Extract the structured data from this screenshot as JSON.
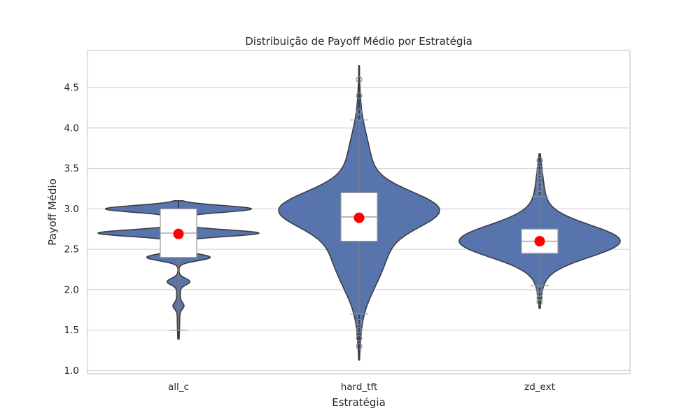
{
  "chart_data": {
    "type": "violin",
    "title": "Distribuição de Payoff Médio por Estratégia",
    "xlabel": "Estratégia",
    "ylabel": "Payoff Médio",
    "ylim": [
      0.96,
      4.96
    ],
    "yticks": [
      "1.0",
      "1.5",
      "2.0",
      "2.5",
      "3.0",
      "3.5",
      "4.0",
      "4.5"
    ],
    "grid": "horizontal",
    "colors": {
      "violin_fill": "#5874ac",
      "violin_edge": "#3c3c46",
      "box_fill": "#ffffff",
      "box_edge": "#9a9a9a",
      "mean_marker": "#ff0000",
      "grid": "#cccccc",
      "frame": "#cccccc"
    },
    "categories": [
      "all_c",
      "hard_tft",
      "zd_ext"
    ],
    "series": [
      {
        "category": "all_c",
        "violin_range": [
          1.39,
          3.1
        ],
        "box": {
          "q1": 2.4,
          "median": 2.7,
          "q3": 3.0,
          "whisker_low": 1.5,
          "whisker_high": 3.0
        },
        "mean": 2.69,
        "outliers": []
      },
      {
        "category": "hard_tft",
        "violin_range": [
          1.13,
          4.77
        ],
        "box": {
          "q1": 2.6,
          "median": 2.9,
          "q3": 3.2,
          "whisker_low": 1.7,
          "whisker_high": 4.1
        },
        "mean": 2.89,
        "outliers": [
          1.3,
          1.4,
          1.5,
          1.5,
          1.6,
          4.2,
          4.2,
          4.4,
          4.6
        ]
      },
      {
        "category": "zd_ext",
        "violin_range": [
          1.77,
          3.68
        ],
        "box": {
          "q1": 2.45,
          "median": 2.6,
          "q3": 2.75,
          "whisker_low": 2.05,
          "whisker_high": 3.15
        },
        "mean": 2.6,
        "outliers": [
          1.85,
          1.9,
          1.95,
          2.0,
          3.2,
          3.25,
          3.3,
          3.35,
          3.4,
          3.45,
          3.5,
          3.6
        ]
      }
    ]
  }
}
